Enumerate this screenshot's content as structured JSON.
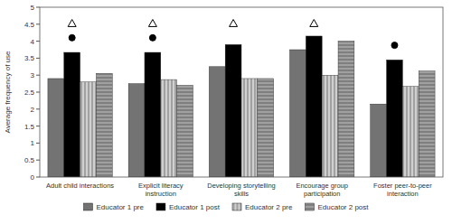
{
  "chart_data": {
    "type": "bar",
    "categories": [
      "Adult child interactions",
      "Explicit literacy\ninstruction",
      "Developing storytelling\nskills",
      "Encourage group\nparticipation",
      "Foster peer-to-peer\ninteraction"
    ],
    "series": [
      {
        "name": "Educator 1 pre",
        "color": "#737373",
        "values": [
          2.9,
          2.75,
          3.25,
          3.75,
          2.15
        ]
      },
      {
        "name": "Educator 1 post",
        "color": "#000000",
        "values": [
          3.67,
          3.67,
          3.9,
          4.15,
          3.45
        ]
      },
      {
        "name": "Educator 2 pre",
        "color": "#d0d0d0",
        "values": [
          2.8,
          2.87,
          2.9,
          3.0,
          2.67
        ]
      },
      {
        "name": "Educator 2 post",
        "color": "#a0a0a0",
        "values": [
          3.05,
          2.7,
          2.9,
          4.0,
          3.12
        ]
      },
      {
        "type": "scatter",
        "marker": "circle",
        "color": "#000000",
        "values": [
          4.1,
          4.1,
          null,
          null,
          3.88
        ]
      },
      {
        "type": "scatter",
        "marker": "triangle",
        "color": "#ffffff",
        "values": [
          4.52,
          4.52,
          4.52,
          4.52,
          null
        ]
      }
    ],
    "ylabel": "Average frequency of use",
    "ylim": [
      0,
      5
    ],
    "yticks": [
      0,
      0.5,
      1,
      1.5,
      2,
      2.5,
      3,
      3.5,
      4,
      4.5,
      5
    ],
    "grid": false,
    "legend": "bottom"
  }
}
